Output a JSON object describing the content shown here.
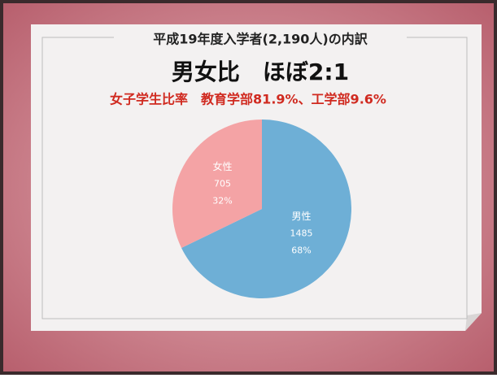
{
  "chart_data": {
    "type": "pie",
    "title": "平成19年度入学者(2,190人)の内訳",
    "subtitle": "男女比　ほぼ2:1",
    "annotation": "女子学生比率　教育学部81.9%、工学部9.6%",
    "categories": [
      "女性",
      "男性"
    ],
    "values": [
      705,
      1485
    ],
    "percentages": [
      32,
      68
    ],
    "percentage_labels": [
      "32%",
      "68%"
    ],
    "colors": [
      "#f4a3a5",
      "#6eafd6"
    ]
  }
}
